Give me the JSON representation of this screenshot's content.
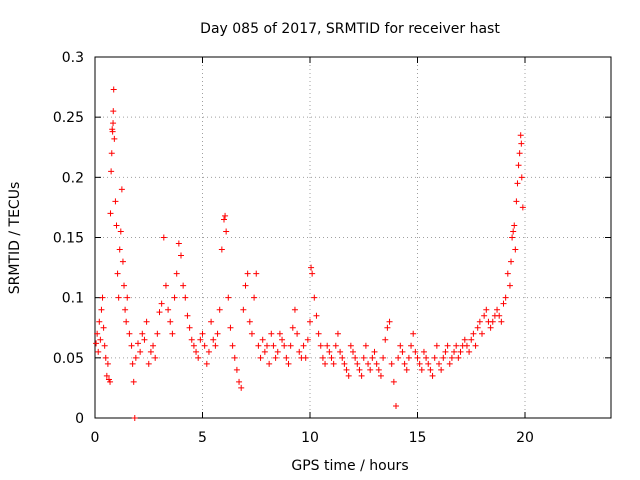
{
  "chart_data": {
    "type": "scatter",
    "title": "Day 085 of 2017, SRMTID for receiver hast",
    "xlabel": "GPS time / hours",
    "ylabel": "SRMTID / TECUs",
    "xlim": [
      0,
      24
    ],
    "ylim": [
      0,
      0.3
    ],
    "xticks": [
      "0",
      "5",
      "10",
      "15",
      "20"
    ],
    "yticks": [
      "0",
      "0.05",
      "0.1",
      "0.15",
      "0.2",
      "0.25",
      "0.3"
    ],
    "grid": true,
    "marker": "plus",
    "series_color": "#ff0000",
    "series": [
      {
        "points": [
          [
            0.05,
            0.062
          ],
          [
            0.1,
            0.07
          ],
          [
            0.15,
            0.055
          ],
          [
            0.2,
            0.08
          ],
          [
            0.25,
            0.065
          ],
          [
            0.3,
            0.09
          ],
          [
            0.35,
            0.1
          ],
          [
            0.4,
            0.075
          ],
          [
            0.45,
            0.06
          ],
          [
            0.5,
            0.05
          ],
          [
            0.55,
            0.035
          ],
          [
            0.6,
            0.045
          ],
          [
            0.65,
            0.032
          ],
          [
            0.7,
            0.03
          ],
          [
            0.72,
            0.17
          ],
          [
            0.75,
            0.205
          ],
          [
            0.78,
            0.22
          ],
          [
            0.8,
            0.24
          ],
          [
            0.82,
            0.238
          ],
          [
            0.84,
            0.245
          ],
          [
            0.85,
            0.255
          ],
          [
            0.87,
            0.273
          ],
          [
            0.9,
            0.232
          ],
          [
            0.95,
            0.18
          ],
          [
            1.0,
            0.16
          ],
          [
            1.05,
            0.12
          ],
          [
            1.1,
            0.1
          ],
          [
            1.15,
            0.14
          ],
          [
            1.2,
            0.155
          ],
          [
            1.25,
            0.19
          ],
          [
            1.3,
            0.13
          ],
          [
            1.35,
            0.11
          ],
          [
            1.4,
            0.09
          ],
          [
            1.45,
            0.08
          ],
          [
            1.5,
            0.1
          ],
          [
            1.6,
            0.07
          ],
          [
            1.7,
            0.06
          ],
          [
            1.75,
            0.045
          ],
          [
            1.8,
            0.03
          ],
          [
            1.85,
            0.0
          ],
          [
            1.9,
            0.05
          ],
          [
            2.0,
            0.062
          ],
          [
            2.1,
            0.055
          ],
          [
            2.2,
            0.07
          ],
          [
            2.3,
            0.065
          ],
          [
            2.4,
            0.08
          ],
          [
            2.5,
            0.045
          ],
          [
            2.6,
            0.055
          ],
          [
            2.7,
            0.06
          ],
          [
            2.8,
            0.05
          ],
          [
            2.9,
            0.07
          ],
          [
            3.0,
            0.088
          ],
          [
            3.1,
            0.095
          ],
          [
            3.2,
            0.15
          ],
          [
            3.3,
            0.11
          ],
          [
            3.4,
            0.09
          ],
          [
            3.5,
            0.08
          ],
          [
            3.6,
            0.07
          ],
          [
            3.7,
            0.1
          ],
          [
            3.8,
            0.12
          ],
          [
            3.9,
            0.145
          ],
          [
            4.0,
            0.135
          ],
          [
            4.1,
            0.11
          ],
          [
            4.2,
            0.1
          ],
          [
            4.3,
            0.085
          ],
          [
            4.4,
            0.075
          ],
          [
            4.5,
            0.065
          ],
          [
            4.6,
            0.06
          ],
          [
            4.7,
            0.055
          ],
          [
            4.8,
            0.05
          ],
          [
            4.9,
            0.065
          ],
          [
            5.0,
            0.07
          ],
          [
            5.1,
            0.06
          ],
          [
            5.2,
            0.045
          ],
          [
            5.3,
            0.055
          ],
          [
            5.4,
            0.08
          ],
          [
            5.5,
            0.065
          ],
          [
            5.6,
            0.06
          ],
          [
            5.7,
            0.07
          ],
          [
            5.8,
            0.09
          ],
          [
            5.9,
            0.14
          ],
          [
            6.0,
            0.165
          ],
          [
            6.05,
            0.168
          ],
          [
            6.1,
            0.155
          ],
          [
            6.2,
            0.1
          ],
          [
            6.3,
            0.075
          ],
          [
            6.4,
            0.06
          ],
          [
            6.5,
            0.05
          ],
          [
            6.6,
            0.04
          ],
          [
            6.7,
            0.03
          ],
          [
            6.8,
            0.025
          ],
          [
            6.9,
            0.09
          ],
          [
            7.0,
            0.11
          ],
          [
            7.1,
            0.12
          ],
          [
            7.2,
            0.08
          ],
          [
            7.3,
            0.07
          ],
          [
            7.4,
            0.1
          ],
          [
            7.5,
            0.12
          ],
          [
            7.6,
            0.06
          ],
          [
            7.7,
            0.05
          ],
          [
            7.8,
            0.065
          ],
          [
            7.9,
            0.055
          ],
          [
            8.0,
            0.06
          ],
          [
            8.1,
            0.045
          ],
          [
            8.2,
            0.07
          ],
          [
            8.3,
            0.06
          ],
          [
            8.4,
            0.05
          ],
          [
            8.5,
            0.055
          ],
          [
            8.6,
            0.07
          ],
          [
            8.7,
            0.065
          ],
          [
            8.8,
            0.06
          ],
          [
            8.9,
            0.05
          ],
          [
            9.0,
            0.045
          ],
          [
            9.1,
            0.06
          ],
          [
            9.2,
            0.075
          ],
          [
            9.3,
            0.09
          ],
          [
            9.4,
            0.07
          ],
          [
            9.5,
            0.055
          ],
          [
            9.6,
            0.05
          ],
          [
            9.7,
            0.06
          ],
          [
            9.8,
            0.05
          ],
          [
            9.9,
            0.065
          ],
          [
            10.0,
            0.08
          ],
          [
            10.05,
            0.125
          ],
          [
            10.1,
            0.12
          ],
          [
            10.2,
            0.1
          ],
          [
            10.3,
            0.085
          ],
          [
            10.4,
            0.07
          ],
          [
            10.5,
            0.06
          ],
          [
            10.6,
            0.05
          ],
          [
            10.7,
            0.045
          ],
          [
            10.8,
            0.06
          ],
          [
            10.9,
            0.055
          ],
          [
            11.0,
            0.05
          ],
          [
            11.1,
            0.045
          ],
          [
            11.2,
            0.06
          ],
          [
            11.3,
            0.07
          ],
          [
            11.4,
            0.055
          ],
          [
            11.5,
            0.05
          ],
          [
            11.6,
            0.045
          ],
          [
            11.7,
            0.04
          ],
          [
            11.8,
            0.035
          ],
          [
            11.9,
            0.06
          ],
          [
            12.0,
            0.055
          ],
          [
            12.1,
            0.05
          ],
          [
            12.2,
            0.045
          ],
          [
            12.3,
            0.04
          ],
          [
            12.4,
            0.035
          ],
          [
            12.5,
            0.05
          ],
          [
            12.6,
            0.06
          ],
          [
            12.7,
            0.045
          ],
          [
            12.8,
            0.04
          ],
          [
            12.9,
            0.05
          ],
          [
            13.0,
            0.055
          ],
          [
            13.1,
            0.045
          ],
          [
            13.2,
            0.04
          ],
          [
            13.3,
            0.035
          ],
          [
            13.4,
            0.05
          ],
          [
            13.5,
            0.065
          ],
          [
            13.6,
            0.075
          ],
          [
            13.7,
            0.08
          ],
          [
            13.8,
            0.045
          ],
          [
            13.9,
            0.03
          ],
          [
            14.0,
            0.01
          ],
          [
            14.1,
            0.05
          ],
          [
            14.2,
            0.06
          ],
          [
            14.3,
            0.055
          ],
          [
            14.4,
            0.045
          ],
          [
            14.5,
            0.04
          ],
          [
            14.6,
            0.05
          ],
          [
            14.7,
            0.06
          ],
          [
            14.8,
            0.07
          ],
          [
            14.9,
            0.055
          ],
          [
            15.0,
            0.05
          ],
          [
            15.1,
            0.045
          ],
          [
            15.2,
            0.04
          ],
          [
            15.3,
            0.055
          ],
          [
            15.4,
            0.05
          ],
          [
            15.5,
            0.045
          ],
          [
            15.6,
            0.04
          ],
          [
            15.7,
            0.035
          ],
          [
            15.8,
            0.05
          ],
          [
            15.9,
            0.06
          ],
          [
            16.0,
            0.045
          ],
          [
            16.1,
            0.04
          ],
          [
            16.2,
            0.05
          ],
          [
            16.3,
            0.055
          ],
          [
            16.4,
            0.06
          ],
          [
            16.5,
            0.045
          ],
          [
            16.6,
            0.05
          ],
          [
            16.7,
            0.055
          ],
          [
            16.8,
            0.06
          ],
          [
            16.9,
            0.05
          ],
          [
            17.0,
            0.055
          ],
          [
            17.1,
            0.06
          ],
          [
            17.2,
            0.065
          ],
          [
            17.3,
            0.06
          ],
          [
            17.4,
            0.055
          ],
          [
            17.5,
            0.065
          ],
          [
            17.6,
            0.07
          ],
          [
            17.7,
            0.06
          ],
          [
            17.8,
            0.075
          ],
          [
            17.9,
            0.08
          ],
          [
            18.0,
            0.07
          ],
          [
            18.1,
            0.085
          ],
          [
            18.2,
            0.09
          ],
          [
            18.3,
            0.08
          ],
          [
            18.4,
            0.075
          ],
          [
            18.5,
            0.08
          ],
          [
            18.6,
            0.085
          ],
          [
            18.7,
            0.09
          ],
          [
            18.8,
            0.085
          ],
          [
            18.9,
            0.08
          ],
          [
            19.0,
            0.095
          ],
          [
            19.1,
            0.1
          ],
          [
            19.2,
            0.12
          ],
          [
            19.3,
            0.11
          ],
          [
            19.35,
            0.13
          ],
          [
            19.4,
            0.15
          ],
          [
            19.45,
            0.155
          ],
          [
            19.5,
            0.16
          ],
          [
            19.55,
            0.14
          ],
          [
            19.6,
            0.18
          ],
          [
            19.65,
            0.195
          ],
          [
            19.7,
            0.21
          ],
          [
            19.75,
            0.22
          ],
          [
            19.8,
            0.235
          ],
          [
            19.83,
            0.228
          ],
          [
            19.85,
            0.2
          ],
          [
            19.9,
            0.175
          ]
        ]
      }
    ]
  }
}
